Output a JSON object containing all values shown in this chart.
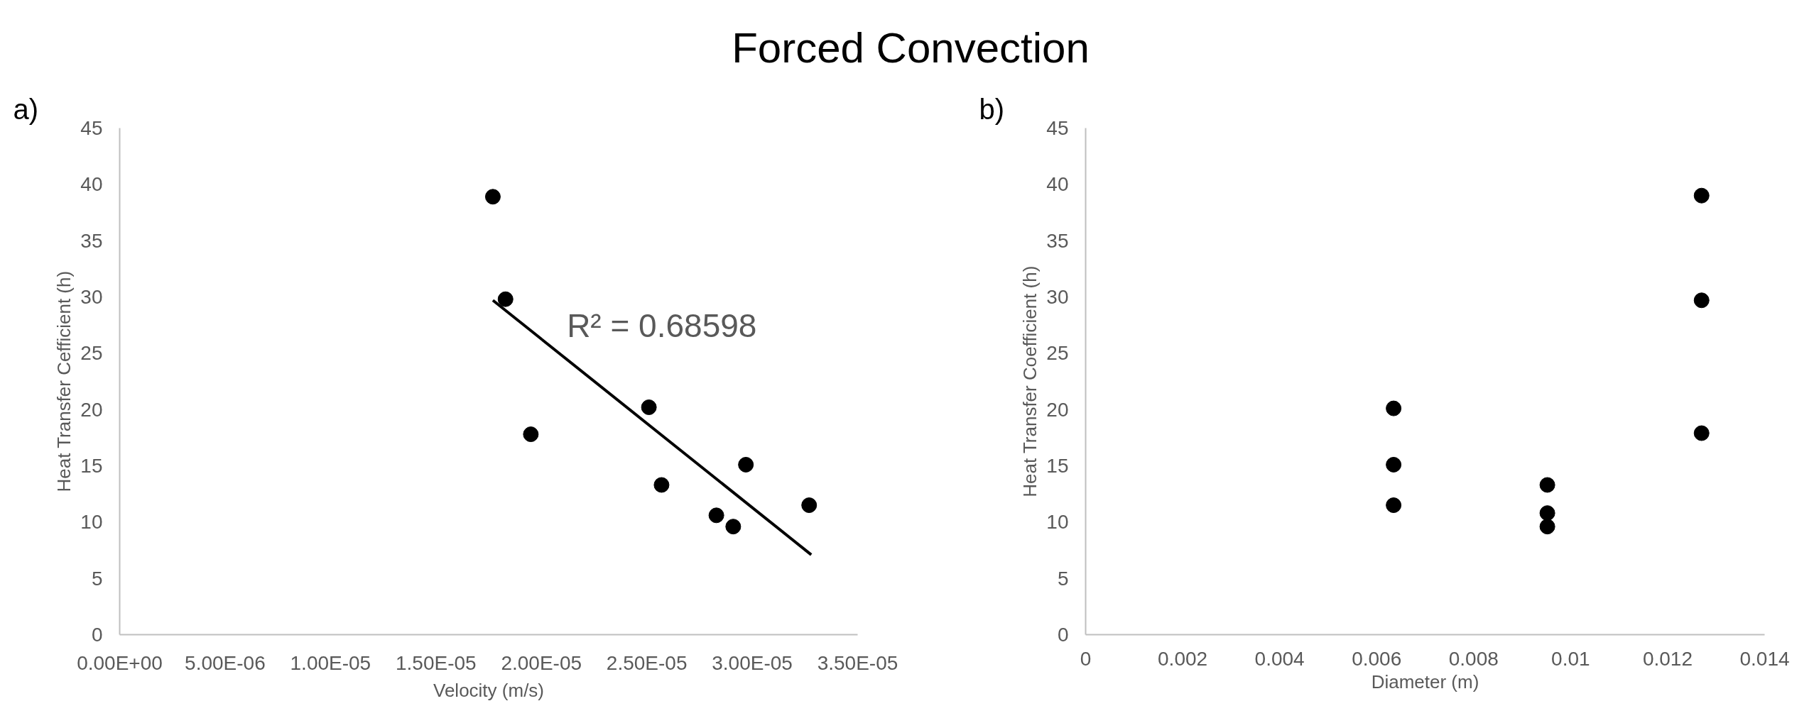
{
  "chart_data": [
    {
      "type": "scatter",
      "title": "Forced Convection",
      "xlabel": "Velocity (m/s)",
      "ylabel": "Heat Transfer Cefficient (h)",
      "annotations": [
        "a)",
        "R² = 0.68598"
      ],
      "series": [
        {
          "marker": "circle",
          "color": "#000000",
          "x": [
            1.77e-05,
            1.83e-05,
            1.95e-05,
            2.51e-05,
            2.57e-05,
            2.83e-05,
            2.91e-05,
            2.97e-05,
            3.27e-05
          ],
          "values": [
            38.9,
            29.8,
            17.8,
            20.2,
            13.3,
            10.6,
            9.6,
            15.1,
            11.5
          ]
        },
        {
          "type": "line",
          "color": "#000000",
          "x": [
            1.77e-05,
            3.28e-05
          ],
          "values": [
            29.7,
            7.1
          ]
        }
      ],
      "line_style": "solid",
      "grid": false,
      "xlim": [
        0,
        3.5e-05
      ],
      "ylim": [
        0,
        45
      ],
      "xticks": [
        {
          "value": 0,
          "label": "0.00E+00"
        },
        {
          "value": 5e-06,
          "label": "5.00E-06"
        },
        {
          "value": 1e-05,
          "label": "1.00E-05"
        },
        {
          "value": 1.5e-05,
          "label": "1.50E-05"
        },
        {
          "value": 2e-05,
          "label": "2.00E-05"
        },
        {
          "value": 2.5e-05,
          "label": "2.50E-05"
        },
        {
          "value": 3e-05,
          "label": "3.00E-05"
        },
        {
          "value": 3.5e-05,
          "label": "3.50E-05"
        }
      ],
      "yticks": [
        0,
        5,
        10,
        15,
        20,
        25,
        30,
        35,
        40,
        45
      ]
    },
    {
      "type": "scatter",
      "xlabel": "Diameter (m)",
      "ylabel": "Heat Transfer Coefficient (h)",
      "annotations": [
        "b)"
      ],
      "series": [
        {
          "color": "#000000",
          "x": [
            0.00635,
            0.00635,
            0.00635,
            0.00952,
            0.00952,
            0.00952,
            0.0127,
            0.0127,
            0.0127
          ],
          "values": [
            20.1,
            15.1,
            11.5,
            13.3,
            10.8,
            9.6,
            39.0,
            29.7,
            17.9
          ]
        }
      ],
      "marker": "circle",
      "grid": false,
      "xlim": [
        0,
        0.014
      ],
      "ylim": [
        0,
        45
      ],
      "xticks": [
        0,
        0.002,
        0.004,
        0.006,
        0.008,
        0.01,
        0.012,
        0.014
      ],
      "yticks": [
        0,
        5,
        10,
        15,
        20,
        25,
        30,
        35,
        40,
        45
      ]
    }
  ]
}
